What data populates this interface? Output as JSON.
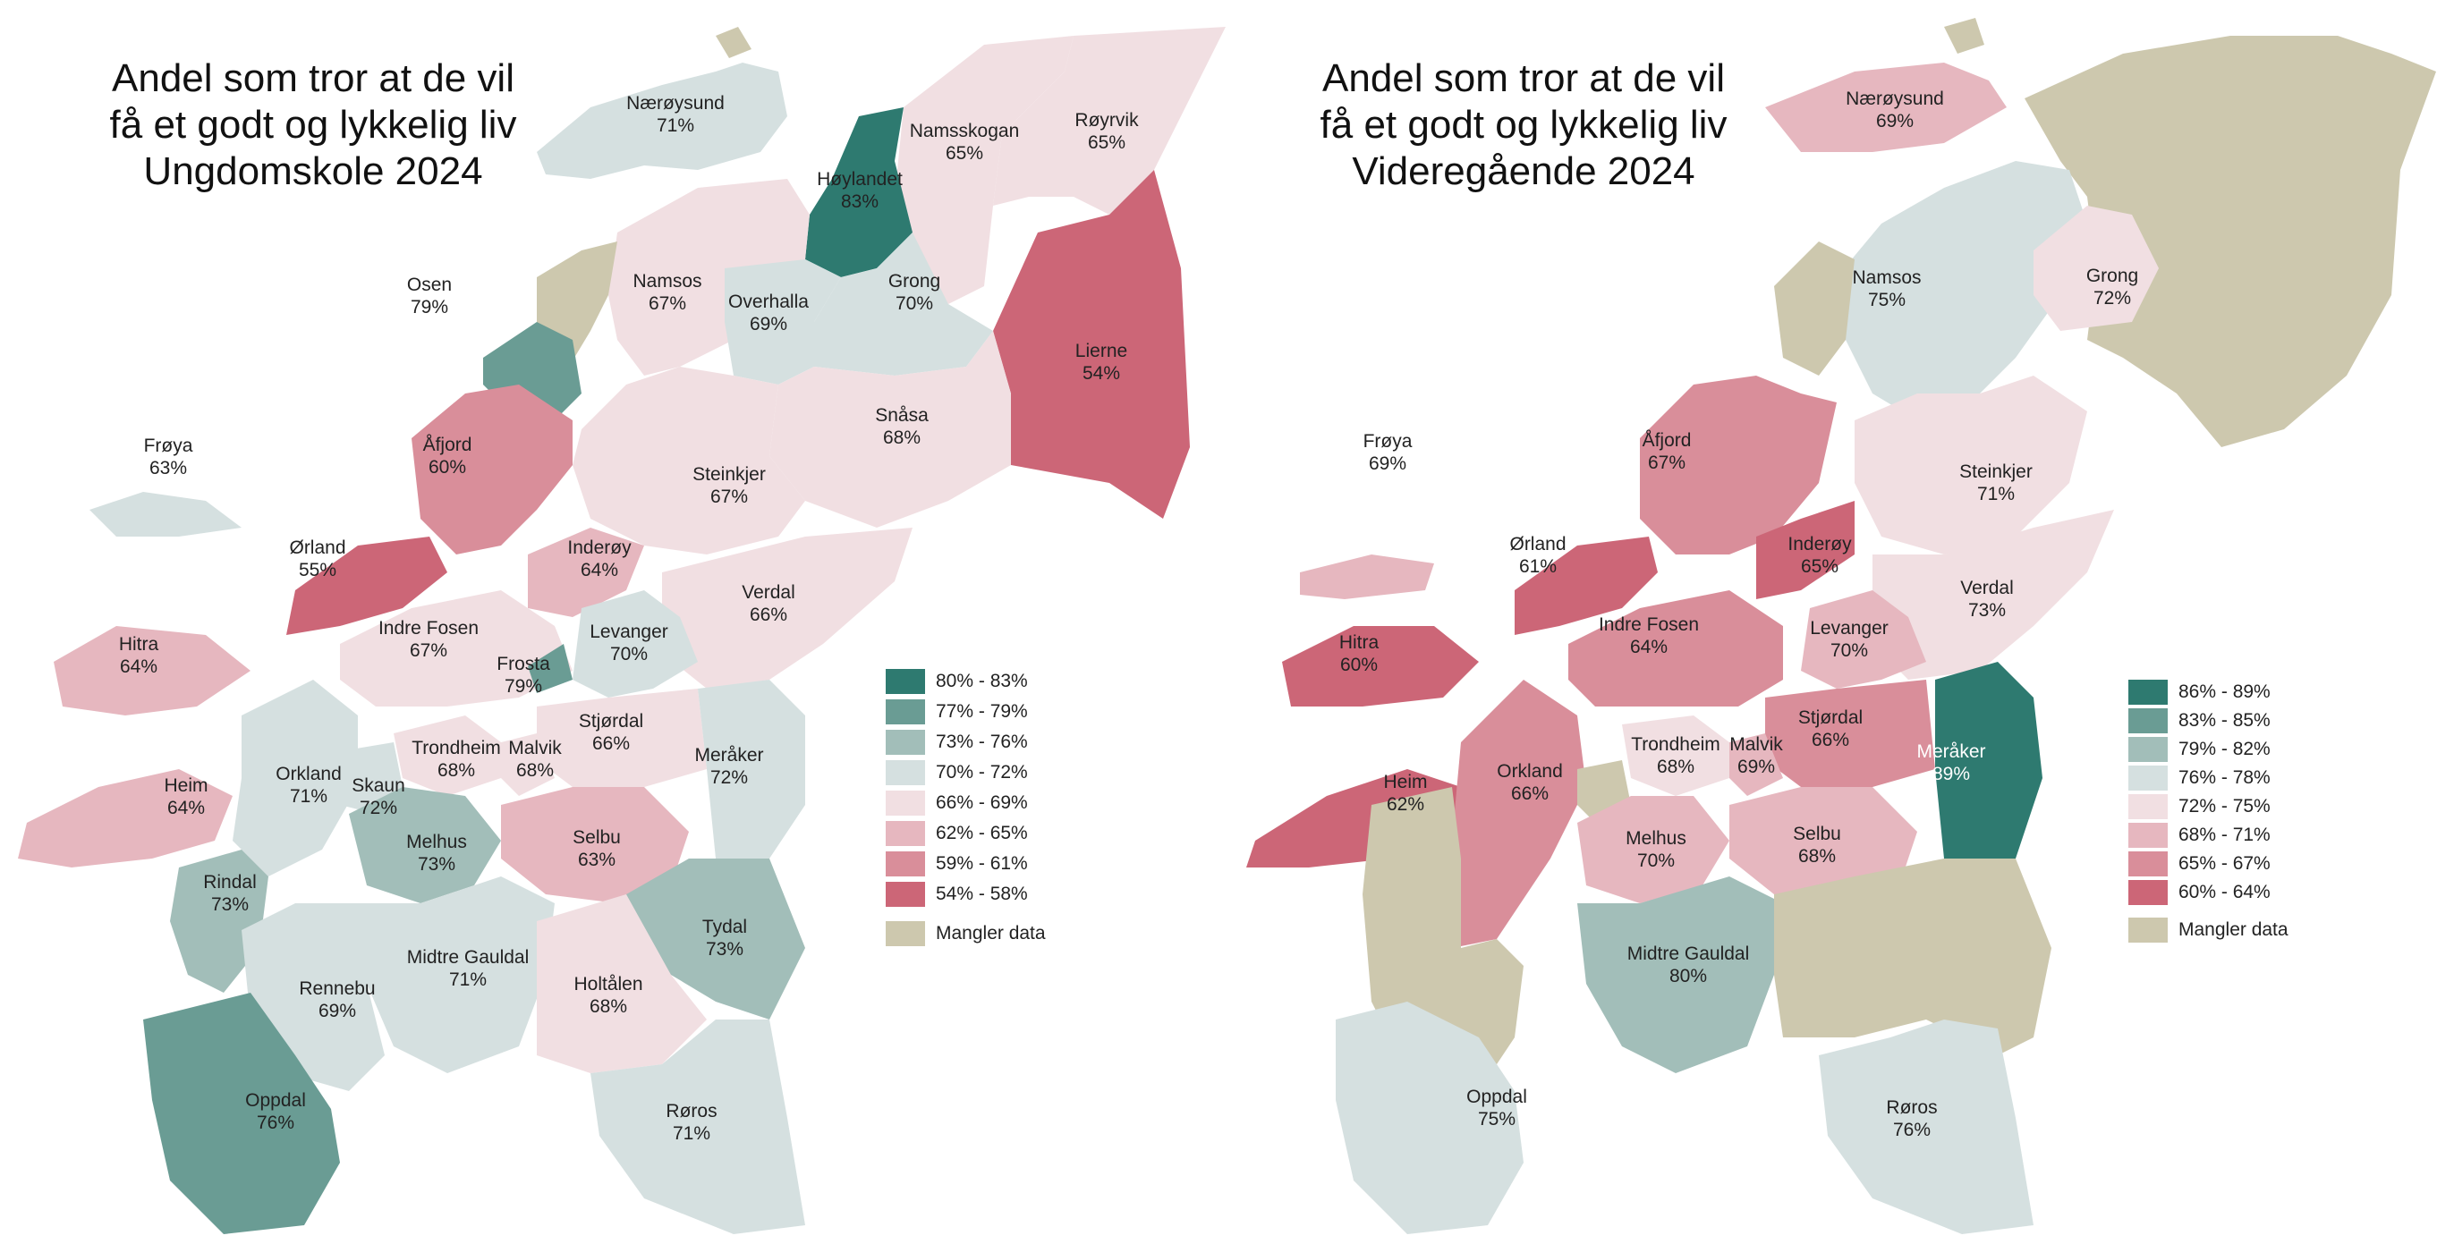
{
  "left": {
    "title": [
      "Andel som tror at de vil",
      "få et godt og lykkelig liv",
      "Ungdomskole 2024"
    ],
    "legend": [
      {
        "label": "80% - 83%",
        "color": "#2e7a70"
      },
      {
        "label": "77% - 79%",
        "color": "#6a9c94"
      },
      {
        "label": "73% - 76%",
        "color": "#a2beb9"
      },
      {
        "label": "70% - 72%",
        "color": "#d5e0e0"
      },
      {
        "label": "66% - 69%",
        "color": "#f1dfe2"
      },
      {
        "label": "62% - 65%",
        "color": "#e6b7bf"
      },
      {
        "label": "59% - 61%",
        "color": "#d98e9a"
      },
      {
        "label": "54% - 58%",
        "color": "#cc6677"
      },
      {
        "label": "Mangler data",
        "color": "#cdc8ae"
      }
    ],
    "municipalities": [
      {
        "name": "Nærøysund",
        "value": "71%"
      },
      {
        "name": "Namsskogan",
        "value": "65%"
      },
      {
        "name": "Røyrvik",
        "value": "65%"
      },
      {
        "name": "Høylandet",
        "value": "83%"
      },
      {
        "name": "Osen",
        "value": "79%"
      },
      {
        "name": "Namsos",
        "value": "67%"
      },
      {
        "name": "Overhalla",
        "value": "69%"
      },
      {
        "name": "Grong",
        "value": "70%"
      },
      {
        "name": "Lierne",
        "value": "54%"
      },
      {
        "name": "Frøya",
        "value": "63%"
      },
      {
        "name": "Åfjord",
        "value": "60%"
      },
      {
        "name": "Snåsa",
        "value": "68%"
      },
      {
        "name": "Steinkjer",
        "value": "67%"
      },
      {
        "name": "Ørland",
        "value": "55%"
      },
      {
        "name": "Inderøy",
        "value": "64%"
      },
      {
        "name": "Verdal",
        "value": "66%"
      },
      {
        "name": "Hitra",
        "value": "64%"
      },
      {
        "name": "Indre Fosen",
        "value": "67%"
      },
      {
        "name": "Levanger",
        "value": "70%"
      },
      {
        "name": "Frosta",
        "value": "79%"
      },
      {
        "name": "Stjørdal",
        "value": "66%"
      },
      {
        "name": "Trondheim",
        "value": "68%"
      },
      {
        "name": "Malvik",
        "value": "68%"
      },
      {
        "name": "Meråker",
        "value": "72%"
      },
      {
        "name": "Orkland",
        "value": "71%"
      },
      {
        "name": "Skaun",
        "value": "72%"
      },
      {
        "name": "Heim",
        "value": "64%"
      },
      {
        "name": "Melhus",
        "value": "73%"
      },
      {
        "name": "Selbu",
        "value": "63%"
      },
      {
        "name": "Rindal",
        "value": "73%"
      },
      {
        "name": "Tydal",
        "value": "73%"
      },
      {
        "name": "Midtre Gauldal",
        "value": "71%"
      },
      {
        "name": "Rennebu",
        "value": "69%"
      },
      {
        "name": "Holtålen",
        "value": "68%"
      },
      {
        "name": "Oppdal",
        "value": "76%"
      },
      {
        "name": "Røros",
        "value": "71%"
      }
    ]
  },
  "right": {
    "title": [
      "Andel som tror at de vil",
      "få et godt og lykkelig liv",
      "Videregående 2024"
    ],
    "legend": [
      {
        "label": "86% - 89%",
        "color": "#2e7a70"
      },
      {
        "label": "83% - 85%",
        "color": "#6a9c94"
      },
      {
        "label": "79% - 82%",
        "color": "#a2beb9"
      },
      {
        "label": "76% - 78%",
        "color": "#d5e0e0"
      },
      {
        "label": "72% - 75%",
        "color": "#f1dfe2"
      },
      {
        "label": "68% - 71%",
        "color": "#e6b7bf"
      },
      {
        "label": "65% - 67%",
        "color": "#d98e9a"
      },
      {
        "label": "60% - 64%",
        "color": "#cc6677"
      },
      {
        "label": "Mangler data",
        "color": "#cdc8ae"
      }
    ],
    "municipalities": [
      {
        "name": "Nærøysund",
        "value": "69%"
      },
      {
        "name": "Namsos",
        "value": "75%"
      },
      {
        "name": "Grong",
        "value": "72%"
      },
      {
        "name": "Frøya",
        "value": "69%"
      },
      {
        "name": "Åfjord",
        "value": "67%"
      },
      {
        "name": "Steinkjer",
        "value": "71%"
      },
      {
        "name": "Ørland",
        "value": "61%"
      },
      {
        "name": "Inderøy",
        "value": "65%"
      },
      {
        "name": "Verdal",
        "value": "73%"
      },
      {
        "name": "Hitra",
        "value": "60%"
      },
      {
        "name": "Indre Fosen",
        "value": "64%"
      },
      {
        "name": "Levanger",
        "value": "70%"
      },
      {
        "name": "Stjørdal",
        "value": "66%"
      },
      {
        "name": "Trondheim",
        "value": "68%"
      },
      {
        "name": "Malvik",
        "value": "69%"
      },
      {
        "name": "Meråker",
        "value": "89%"
      },
      {
        "name": "Heim",
        "value": "62%"
      },
      {
        "name": "Orkland",
        "value": "66%"
      },
      {
        "name": "Melhus",
        "value": "70%"
      },
      {
        "name": "Selbu",
        "value": "68%"
      },
      {
        "name": "Midtre Gauldal",
        "value": "80%"
      },
      {
        "name": "Oppdal",
        "value": "75%"
      },
      {
        "name": "Røros",
        "value": "76%"
      }
    ]
  }
}
